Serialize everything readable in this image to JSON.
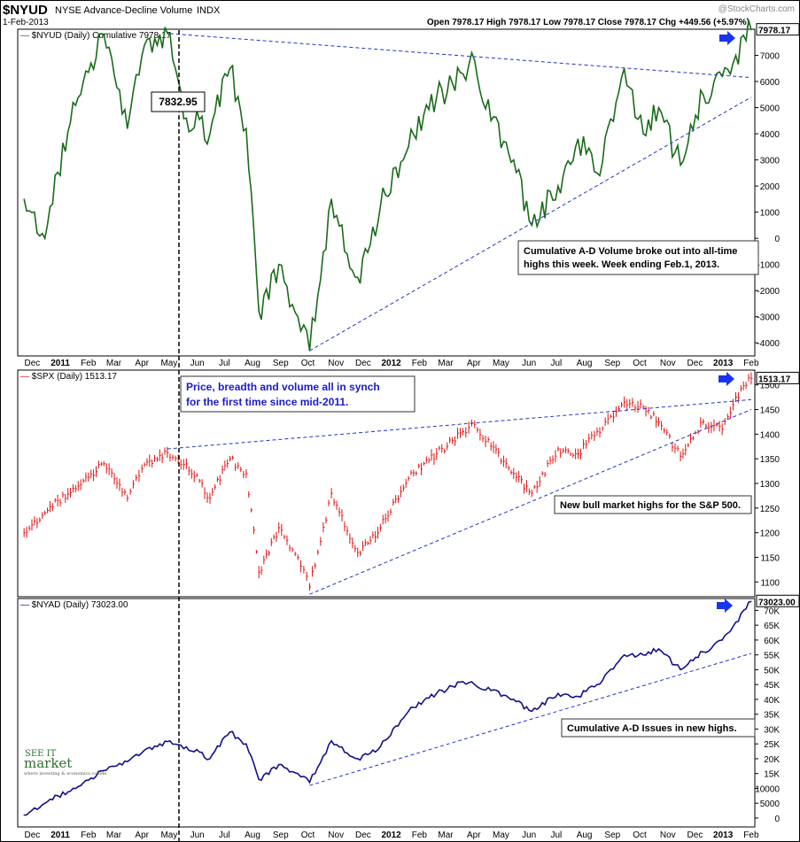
{
  "header": {
    "symbol": "$NYUD",
    "name": "NYSE Advance-Decline Volume",
    "exchange": "INDX",
    "watermark": "@StockCharts.com",
    "date": "1-Feb-2013",
    "ohlc": "Open 7978.17   High 7978.17   Low 7978.17   Close 7978.17   Chg +449.56 (+5.97%)"
  },
  "logo": {
    "line1": "SEE IT",
    "line2": "market",
    "tagline": "where investing & economics collide"
  },
  "x_axis": {
    "labels": [
      "Dec",
      "2011",
      "Feb",
      "Mar",
      "Apr",
      "May",
      "Jun",
      "Jul",
      "Aug",
      "Sep",
      "Oct",
      "Nov",
      "Dec",
      "2012",
      "Feb",
      "Mar",
      "Apr",
      "May",
      "Jun",
      "Jul",
      "Aug",
      "Sep",
      "Oct",
      "Nov",
      "Dec",
      "2013",
      "Feb"
    ]
  },
  "colors": {
    "nyud": "#1a6b1a",
    "spx": "#e01010",
    "nyad": "#10108a",
    "trend": "#2233cc",
    "annot_text": "#1a1acc"
  },
  "chart_data": [
    {
      "type": "line",
      "title": "$NYUD (Daily) Cumulative 7978.17",
      "last_value_label": "7978.17",
      "callout": "7832.95",
      "annotation": "Cumulative A-D Volume broke out into all-time highs this week. Week ending Feb.1, 2013.",
      "ylim": [
        -4500,
        8000
      ],
      "yticks": [
        7000,
        6000,
        5000,
        4000,
        3000,
        2000,
        1000,
        0,
        -1000,
        -2000,
        -3000,
        -4000
      ],
      "ytick_labels": [
        "7000",
        "6000",
        "5000",
        "4000",
        "3000",
        "2000",
        "1000",
        "0",
        "-1000",
        "-2000",
        "-3000",
        "-4000"
      ],
      "x": [
        "2010-11-22",
        "2010-12-15",
        "2011-01-15",
        "2011-02-18",
        "2011-03-16",
        "2011-04-01",
        "2011-05-02",
        "2011-05-20",
        "2011-06-15",
        "2011-07-07",
        "2011-07-25",
        "2011-08-08",
        "2011-08-30",
        "2011-09-20",
        "2011-10-03",
        "2011-10-27",
        "2011-11-25",
        "2011-12-20",
        "2012-01-20",
        "2012-02-20",
        "2012-03-20",
        "2012-04-02",
        "2012-04-20",
        "2012-05-15",
        "2012-06-04",
        "2012-07-03",
        "2012-07-25",
        "2012-08-15",
        "2012-09-14",
        "2012-10-05",
        "2012-10-22",
        "2012-11-15",
        "2012-12-10",
        "2012-12-31",
        "2013-01-15",
        "2013-02-01"
      ],
      "values": [
        1500,
        0,
        5200,
        7800,
        4200,
        7000,
        7830,
        4600,
        4000,
        6500,
        4200,
        -2800,
        -1000,
        -3000,
        -4300,
        1500,
        -1500,
        1200,
        3500,
        5400,
        6300,
        6800,
        4500,
        3000,
        500,
        2000,
        3800,
        2500,
        6500,
        4000,
        5000,
        2800,
        5500,
        6200,
        7000,
        7978
      ],
      "trendlines": [
        {
          "from": [
            "2011-05-02",
            7832
          ],
          "to": [
            "2013-02-01",
            6150
          ]
        },
        {
          "from": [
            "2011-10-03",
            -4300
          ],
          "to": [
            "2013-02-01",
            5400
          ]
        }
      ]
    },
    {
      "type": "bar",
      "title": "$SPX (Daily) 1513.17",
      "last_value_label": "1513.17",
      "annotation_top": [
        "Price, breadth and volume all in synch",
        "for the first time since mid-2011."
      ],
      "annotation": "New bull market highs for the S&P 500.",
      "ylim": [
        1070,
        1530
      ],
      "yticks": [
        1500,
        1450,
        1400,
        1350,
        1300,
        1250,
        1200,
        1150,
        1100
      ],
      "ytick_labels": [
        "1500",
        "1450",
        "1400",
        "1350",
        "1300",
        "1250",
        "1200",
        "1150",
        "1100"
      ],
      "x": [
        "2010-11-22",
        "2010-12-15",
        "2011-01-15",
        "2011-02-18",
        "2011-03-16",
        "2011-04-01",
        "2011-04-29",
        "2011-05-20",
        "2011-06-15",
        "2011-07-07",
        "2011-07-25",
        "2011-08-08",
        "2011-08-30",
        "2011-09-20",
        "2011-10-03",
        "2011-10-27",
        "2011-11-25",
        "2011-12-20",
        "2012-01-20",
        "2012-02-20",
        "2012-03-20",
        "2012-04-02",
        "2012-04-20",
        "2012-05-15",
        "2012-06-04",
        "2012-07-03",
        "2012-07-25",
        "2012-08-15",
        "2012-09-14",
        "2012-10-05",
        "2012-10-22",
        "2012-11-15",
        "2012-12-10",
        "2012-12-31",
        "2013-01-15",
        "2013-02-01"
      ],
      "values": [
        1200,
        1240,
        1290,
        1340,
        1270,
        1330,
        1363,
        1340,
        1270,
        1350,
        1320,
        1120,
        1210,
        1150,
        1090,
        1280,
        1160,
        1210,
        1310,
        1360,
        1405,
        1420,
        1375,
        1320,
        1280,
        1370,
        1360,
        1405,
        1465,
        1455,
        1425,
        1355,
        1425,
        1410,
        1475,
        1513
      ],
      "trendlines": [
        {
          "from": [
            "2011-04-29",
            1370
          ],
          "to": [
            "2013-02-01",
            1470
          ]
        },
        {
          "from": [
            "2011-10-03",
            1075
          ],
          "to": [
            "2013-02-01",
            1450
          ]
        }
      ]
    },
    {
      "type": "line",
      "title": "$NYAD (Daily) 73023.00",
      "last_value_label": "73023.00",
      "annotation": "Cumulative A-D Issues in new highs.",
      "ylim": [
        -3000,
        74000
      ],
      "yticks": [
        70000,
        65000,
        60000,
        55000,
        50000,
        45000,
        40000,
        35000,
        30000,
        25000,
        20000,
        15000,
        10000,
        5000,
        0
      ],
      "ytick_labels": [
        "70K",
        "65K",
        "60K",
        "55K",
        "50K",
        "45K",
        "40K",
        "35K",
        "30K",
        "25K",
        "20K",
        "15K",
        "10000",
        "5000",
        "0"
      ],
      "x": [
        "2010-11-22",
        "2010-12-15",
        "2011-01-15",
        "2011-02-18",
        "2011-03-16",
        "2011-04-01",
        "2011-05-02",
        "2011-05-20",
        "2011-06-15",
        "2011-07-07",
        "2011-07-25",
        "2011-08-08",
        "2011-08-30",
        "2011-09-20",
        "2011-10-03",
        "2011-10-27",
        "2011-11-25",
        "2011-12-20",
        "2012-01-20",
        "2012-02-20",
        "2012-03-20",
        "2012-04-02",
        "2012-04-20",
        "2012-05-15",
        "2012-06-04",
        "2012-07-03",
        "2012-07-25",
        "2012-08-15",
        "2012-09-14",
        "2012-10-05",
        "2012-10-22",
        "2012-11-15",
        "2012-12-10",
        "2012-12-31",
        "2013-01-15",
        "2013-02-01"
      ],
      "values": [
        1000,
        5000,
        10000,
        16000,
        19000,
        22000,
        26000,
        24000,
        20000,
        29000,
        25000,
        13000,
        18000,
        15000,
        12000,
        26000,
        20000,
        24000,
        36000,
        42000,
        46000,
        45000,
        43000,
        40000,
        36000,
        42000,
        41000,
        45000,
        55000,
        55000,
        57000,
        50000,
        56000,
        60000,
        66000,
        73023
      ],
      "trendlines": [
        {
          "from": [
            "2011-10-03",
            11000
          ],
          "to": [
            "2013-02-01",
            55500
          ]
        }
      ]
    }
  ]
}
